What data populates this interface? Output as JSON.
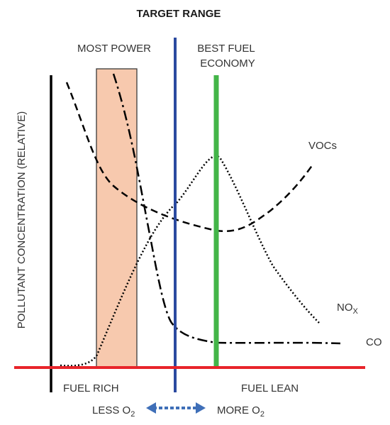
{
  "title": "TARGET RANGE",
  "y_axis_label": "POLLUTANT CONCENTRATION (RELATIVE)",
  "zones": {
    "most_power": "MOST POWER",
    "best_fuel_line1": "BEST FUEL",
    "best_fuel_line2": "ECONOMY"
  },
  "x_labels": {
    "rich": "FUEL RICH",
    "lean": "FUEL LEAN"
  },
  "oxygen_scale": {
    "less_prefix": "LESS O",
    "more_prefix": "MORE O",
    "subscript": "2"
  },
  "curves": {
    "vocs": "VOCs",
    "nox_prefix": "NO",
    "nox_subscript": "X",
    "co": "CO"
  },
  "colors": {
    "power_band_fill": "#f7c9ae",
    "target_line": "#2b4aa0",
    "economy_line": "#43b548",
    "baseline": "#e8242a",
    "oxygen_arrow": "#3f6fb8",
    "axis": "#000000"
  }
}
